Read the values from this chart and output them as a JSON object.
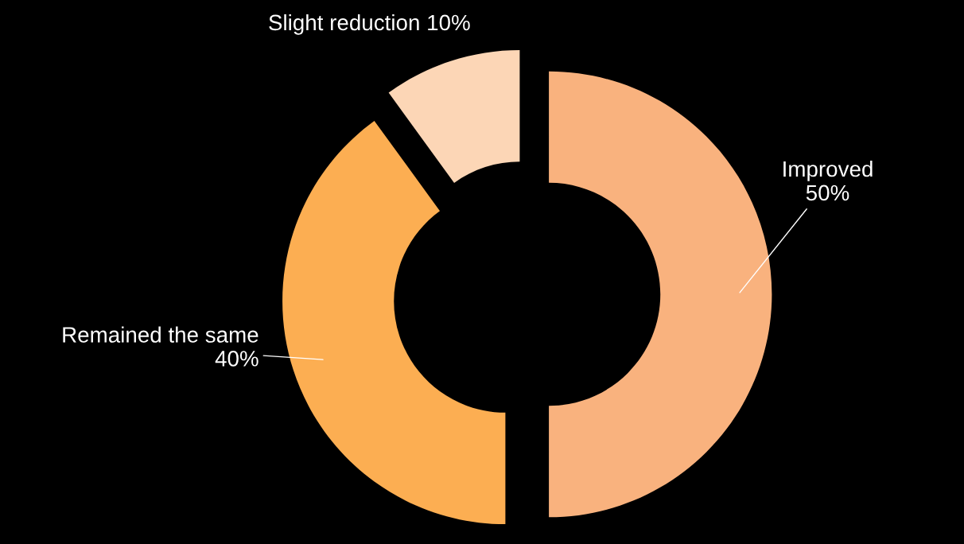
{
  "chart_data": {
    "type": "donut",
    "categories": [
      "Improved",
      "Remained the same",
      "Slight reduction"
    ],
    "values": [
      50,
      40,
      10
    ],
    "value_labels": [
      "50%",
      "40%",
      "10%"
    ],
    "colors": [
      "#f9b27e",
      "#fcae52",
      "#fcd6b6"
    ]
  }
}
